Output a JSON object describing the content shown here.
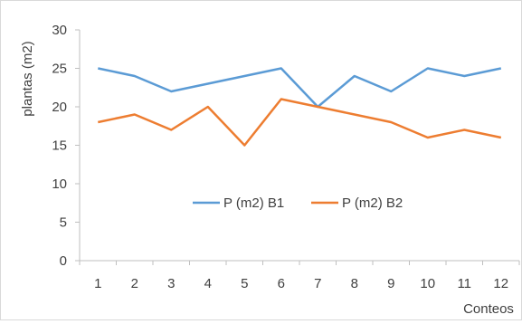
{
  "chart_data": {
    "type": "line",
    "title": "",
    "xlabel": "Conteos",
    "ylabel": "plantas (m2)",
    "ylim": [
      0,
      30
    ],
    "yticks": [
      "0",
      "5",
      "10",
      "15",
      "20",
      "25",
      "30"
    ],
    "categories": [
      "1",
      "2",
      "3",
      "4",
      "5",
      "6",
      "7",
      "8",
      "9",
      "10",
      "11",
      "12"
    ],
    "series": [
      {
        "name": "P (m2) B1",
        "color": "#5b9bd5",
        "values": [
          25,
          24,
          22,
          23,
          24,
          25,
          20,
          24,
          22,
          25,
          24,
          25
        ]
      },
      {
        "name": "P (m2) B2",
        "color": "#ed7d31",
        "values": [
          18,
          19,
          17,
          20,
          15,
          21,
          20,
          19,
          18,
          16,
          17,
          16
        ]
      }
    ],
    "grid": false,
    "legend": "inside-lower-center"
  }
}
